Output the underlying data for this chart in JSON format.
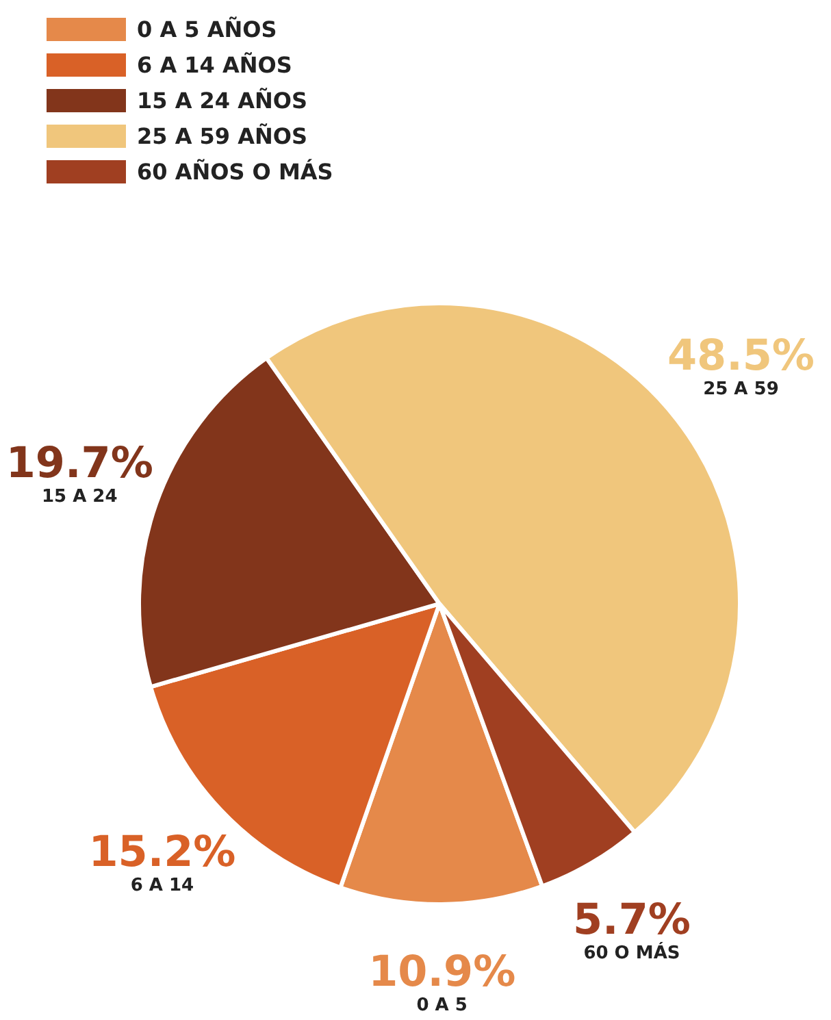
{
  "chart_data": {
    "type": "pie",
    "categories": [
      "0 A 5 AÑOS",
      "6 A 14 AÑOS",
      "15 A 24 AÑOS",
      "25 A 59 AÑOS",
      "60 AÑOS O MÁS"
    ],
    "values": [
      10.9,
      15.2,
      19.7,
      48.5,
      5.7
    ],
    "colors": [
      "#e5894a",
      "#d96127",
      "#82351b",
      "#f0c67c",
      "#a03f21"
    ],
    "value_labels": [
      "10.9%",
      "15.2%",
      "19.7%",
      "48.5%",
      "5.7%"
    ],
    "annotations": [
      {
        "text": "0 A 5",
        "x": "0 A 5 AÑOS"
      },
      {
        "text": "6 A 14",
        "x": "6 A 14 AÑOS"
      },
      {
        "text": "15 A 24",
        "x": "15 A 24 AÑOS"
      },
      {
        "text": "25 A 59",
        "x": "25 A 59 AÑOS"
      },
      {
        "text": "60 O MÁS",
        "x": "60 AÑOS O MÁS"
      }
    ],
    "legend": "top left"
  }
}
